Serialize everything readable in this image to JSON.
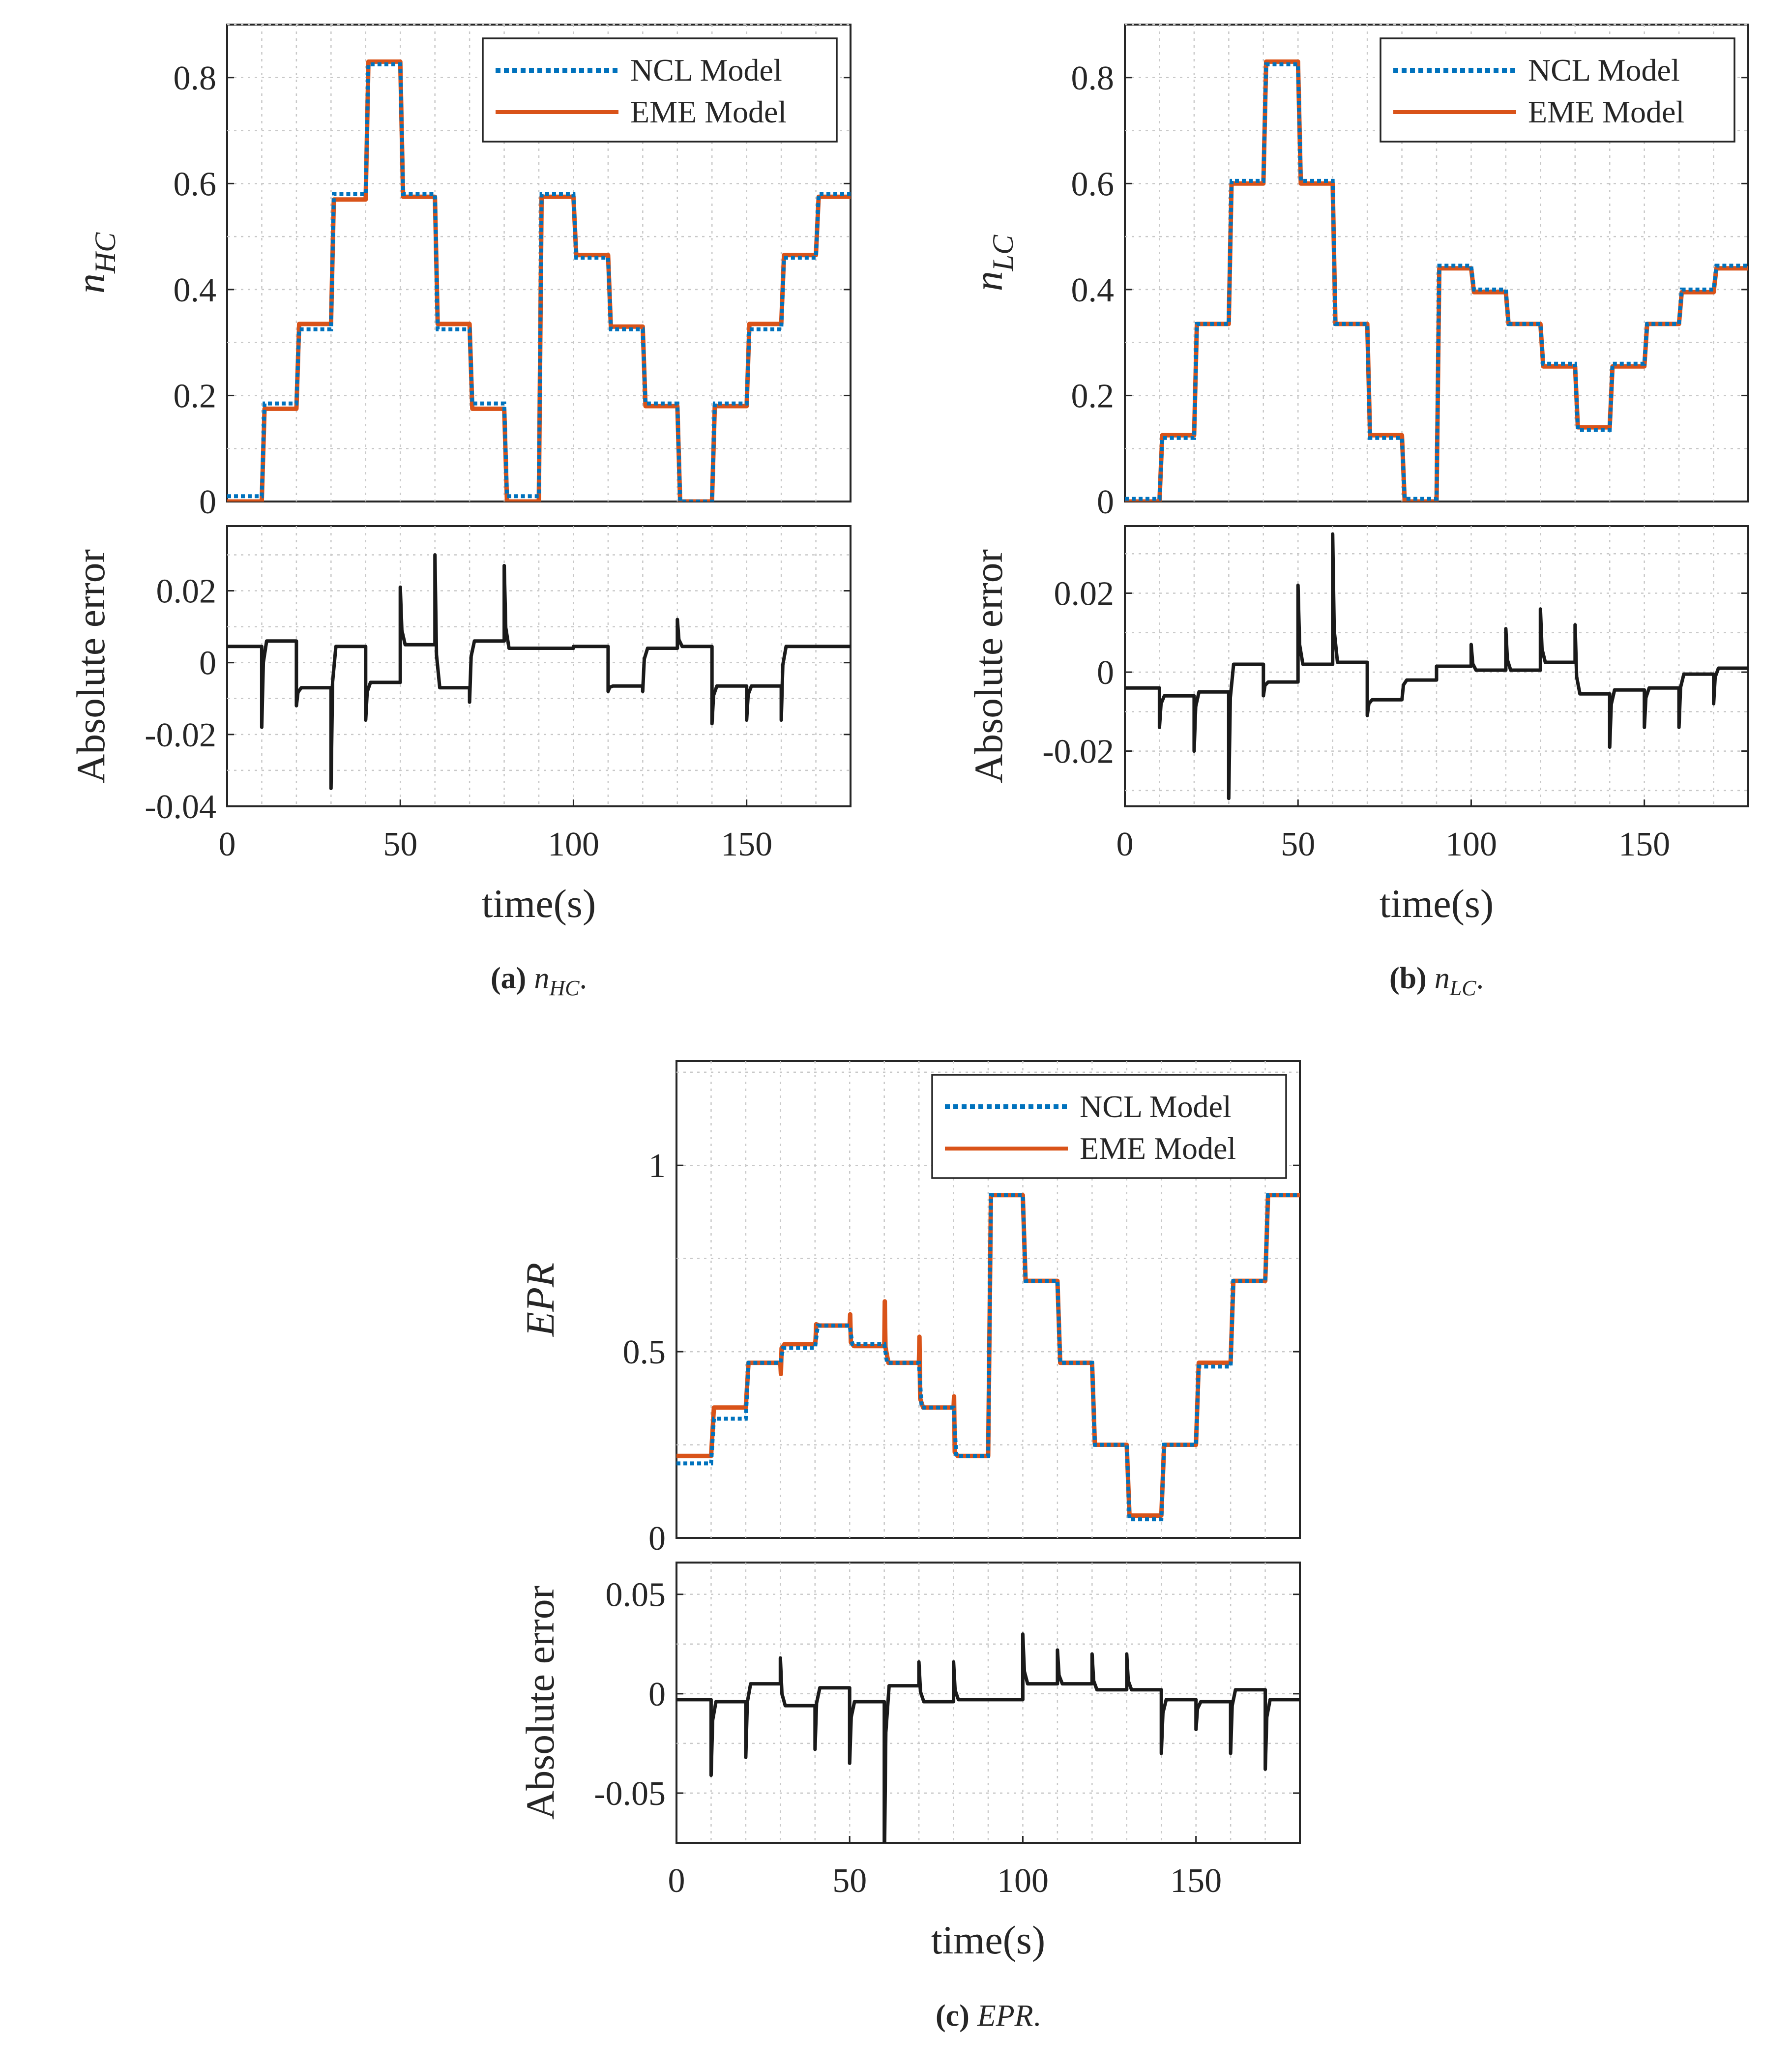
{
  "colors": {
    "ncl": "#0072BD",
    "eme": "#D95319",
    "error": "#1a1a1a",
    "grid": "#c8c8c8",
    "axis": "#262626"
  },
  "chart_data": [
    {
      "id": "a",
      "type": "line",
      "caption": {
        "tag": "(a)",
        "symbol": "n",
        "sub": "HC",
        "end": "."
      },
      "xlabel": "time(s)",
      "top": {
        "ylabel_main": "n",
        "ylabel_sub": "HC",
        "xlim": [
          0,
          180
        ],
        "ylim": [
          0,
          0.9
        ],
        "yticks": [
          0,
          0.2,
          0.4,
          0.6,
          0.8
        ],
        "yticklabels": [
          "0",
          "0.2",
          "0.4",
          "0.6",
          "0.8"
        ],
        "legend": [
          "NCL Model",
          "EME Model"
        ],
        "ncl": {
          "step_times": [
            0,
            10,
            20,
            30,
            40,
            50,
            60,
            70,
            80,
            90,
            100,
            110,
            120,
            130,
            140,
            150,
            160,
            170
          ],
          "levels": [
            0.01,
            0.185,
            0.325,
            0.58,
            0.825,
            0.58,
            0.325,
            0.185,
            0.01,
            0.58,
            0.46,
            0.325,
            0.185,
            0.0,
            0.185,
            0.325,
            0.46,
            0.58
          ]
        },
        "eme": {
          "step_times": [
            0,
            10,
            20,
            30,
            40,
            50,
            60,
            70,
            80,
            90,
            100,
            110,
            120,
            130,
            140,
            150,
            160,
            170
          ],
          "levels": [
            0.0,
            0.175,
            0.335,
            0.57,
            0.83,
            0.575,
            0.335,
            0.175,
            0.0,
            0.575,
            0.465,
            0.33,
            0.18,
            0.0,
            0.18,
            0.335,
            0.465,
            0.575
          ]
        }
      },
      "bottom": {
        "ylabel": "Absolute error",
        "xlim": [
          0,
          180
        ],
        "ylim": [
          -0.04,
          0.038
        ],
        "yticks": [
          -0.04,
          -0.02,
          0,
          0.02
        ],
        "yticklabels": [
          "-0.04",
          "-0.02",
          "0",
          "0.02"
        ],
        "xticks": [
          0,
          50,
          100,
          150
        ],
        "xticklabels": [
          "0",
          "50",
          "100",
          "150"
        ],
        "step_times": [
          0,
          10,
          20,
          30,
          40,
          50,
          60,
          70,
          80,
          90,
          100,
          110,
          120,
          130,
          140,
          150,
          160,
          170
        ],
        "base": [
          0.0045,
          0.006,
          -0.007,
          0.0045,
          -0.0055,
          0.005,
          -0.007,
          0.006,
          0.004,
          0.004,
          0.0045,
          -0.0065,
          0.004,
          0.0045,
          -0.0065,
          -0.0065,
          0.0045,
          0.0045
        ],
        "spike": [
          0,
          -0.018,
          -0.012,
          -0.035,
          -0.016,
          0.021,
          0.03,
          -0.011,
          0.027,
          0,
          0,
          -0.008,
          -0.008,
          0.012,
          -0.017,
          -0.016,
          -0.016,
          0
        ]
      }
    },
    {
      "id": "b",
      "type": "line",
      "caption": {
        "tag": "(b)",
        "symbol": "n",
        "sub": "LC",
        "end": "."
      },
      "xlabel": "time(s)",
      "top": {
        "ylabel_main": "n",
        "ylabel_sub": "LC",
        "xlim": [
          0,
          180
        ],
        "ylim": [
          0,
          0.9
        ],
        "yticks": [
          0,
          0.2,
          0.4,
          0.6,
          0.8
        ],
        "yticklabels": [
          "0",
          "0.2",
          "0.4",
          "0.6",
          "0.8"
        ],
        "legend": [
          "NCL Model",
          "EME Model"
        ],
        "ncl": {
          "step_times": [
            0,
            10,
            20,
            30,
            40,
            50,
            60,
            70,
            80,
            90,
            100,
            110,
            120,
            130,
            140,
            150,
            160,
            170
          ],
          "levels": [
            0.005,
            0.12,
            0.335,
            0.605,
            0.825,
            0.605,
            0.335,
            0.12,
            0.005,
            0.445,
            0.4,
            0.335,
            0.26,
            0.135,
            0.26,
            0.335,
            0.4,
            0.445
          ]
        },
        "eme": {
          "step_times": [
            0,
            10,
            20,
            30,
            40,
            50,
            60,
            70,
            80,
            90,
            100,
            110,
            120,
            130,
            140,
            150,
            160,
            170
          ],
          "levels": [
            0.0,
            0.125,
            0.335,
            0.6,
            0.83,
            0.6,
            0.335,
            0.125,
            0.0,
            0.44,
            0.395,
            0.335,
            0.255,
            0.14,
            0.255,
            0.335,
            0.395,
            0.44
          ]
        }
      },
      "bottom": {
        "ylabel": "Absolute error",
        "xlim": [
          0,
          180
        ],
        "ylim": [
          -0.034,
          0.037
        ],
        "yticks": [
          -0.02,
          0,
          0.02
        ],
        "yticklabels": [
          "-0.02",
          "0",
          "0.02"
        ],
        "xticks": [
          0,
          50,
          100,
          150
        ],
        "xticklabels": [
          "0",
          "50",
          "100",
          "150"
        ],
        "step_times": [
          0,
          10,
          20,
          30,
          40,
          50,
          60,
          70,
          80,
          90,
          100,
          110,
          120,
          130,
          140,
          150,
          160,
          170
        ],
        "base": [
          -0.004,
          -0.006,
          -0.005,
          0.002,
          -0.0025,
          0.002,
          0.0025,
          -0.007,
          -0.002,
          0.0015,
          0.0005,
          0.0005,
          0.0025,
          -0.0055,
          -0.0045,
          -0.004,
          -0.0005,
          0.001
        ],
        "spike": [
          0,
          -0.014,
          -0.02,
          -0.032,
          -0.006,
          0.022,
          0.035,
          -0.011,
          -0.007,
          0.0015,
          0.007,
          0.011,
          0.016,
          0.012,
          -0.019,
          -0.014,
          -0.014,
          -0.008
        ]
      }
    },
    {
      "id": "c",
      "type": "line",
      "caption": {
        "tag": "(c)",
        "symbol": "EPR",
        "sub": "",
        "end": "."
      },
      "xlabel": "time(s)",
      "top": {
        "ylabel_main": "EPR",
        "ylabel_sub": "",
        "xlim": [
          0,
          180
        ],
        "ylim": [
          0,
          1.28
        ],
        "yticks": [
          0,
          0.5,
          1
        ],
        "yticklabels": [
          "0",
          "0.5",
          "1"
        ],
        "legend": [
          "NCL Model",
          "EME Model"
        ],
        "ncl": {
          "step_times": [
            0,
            10,
            20,
            30,
            40,
            50,
            60,
            70,
            80,
            90,
            100,
            110,
            120,
            130,
            140,
            150,
            160,
            170
          ],
          "levels": [
            0.2,
            0.32,
            0.47,
            0.51,
            0.57,
            0.52,
            0.47,
            0.35,
            0.22,
            0.92,
            0.69,
            0.47,
            0.25,
            0.05,
            0.25,
            0.46,
            0.69,
            0.92
          ]
        },
        "eme": {
          "step_times": [
            0,
            10,
            20,
            30,
            40,
            50,
            60,
            70,
            80,
            90,
            100,
            110,
            120,
            130,
            140,
            150,
            160,
            170
          ],
          "levels": [
            0.22,
            0.35,
            0.47,
            0.52,
            0.57,
            0.515,
            0.47,
            0.35,
            0.22,
            0.92,
            0.69,
            0.47,
            0.25,
            0.06,
            0.25,
            0.47,
            0.69,
            0.92
          ]
        },
        "eme_spikes": [
          0,
          0,
          0,
          -0.03,
          0.01,
          0.03,
          0.12,
          0.07,
          0.03,
          0,
          0,
          0,
          0,
          0,
          0,
          0,
          0,
          0
        ]
      },
      "bottom": {
        "ylabel": "Absolute error",
        "xlim": [
          0,
          180
        ],
        "ylim": [
          -0.075,
          0.066
        ],
        "yticks": [
          -0.05,
          0,
          0.05
        ],
        "yticklabels": [
          "-0.05",
          "0",
          "0.05"
        ],
        "xticks": [
          0,
          50,
          100,
          150
        ],
        "xticklabels": [
          "0",
          "50",
          "100",
          "150"
        ],
        "step_times": [
          0,
          10,
          20,
          30,
          40,
          50,
          60,
          70,
          80,
          90,
          100,
          110,
          120,
          130,
          140,
          150,
          160,
          170
        ],
        "base": [
          -0.003,
          -0.004,
          0.005,
          -0.006,
          0.003,
          -0.004,
          0.004,
          -0.004,
          -0.003,
          -0.003,
          0.005,
          0.005,
          0.002,
          0.002,
          -0.003,
          -0.004,
          0.002,
          -0.003
        ],
        "spike": [
          0,
          -0.041,
          -0.032,
          0.018,
          -0.028,
          -0.035,
          -0.09,
          0.016,
          0.016,
          0,
          0.03,
          0.022,
          0.02,
          0.02,
          -0.03,
          -0.018,
          -0.03,
          -0.038
        ]
      }
    }
  ]
}
